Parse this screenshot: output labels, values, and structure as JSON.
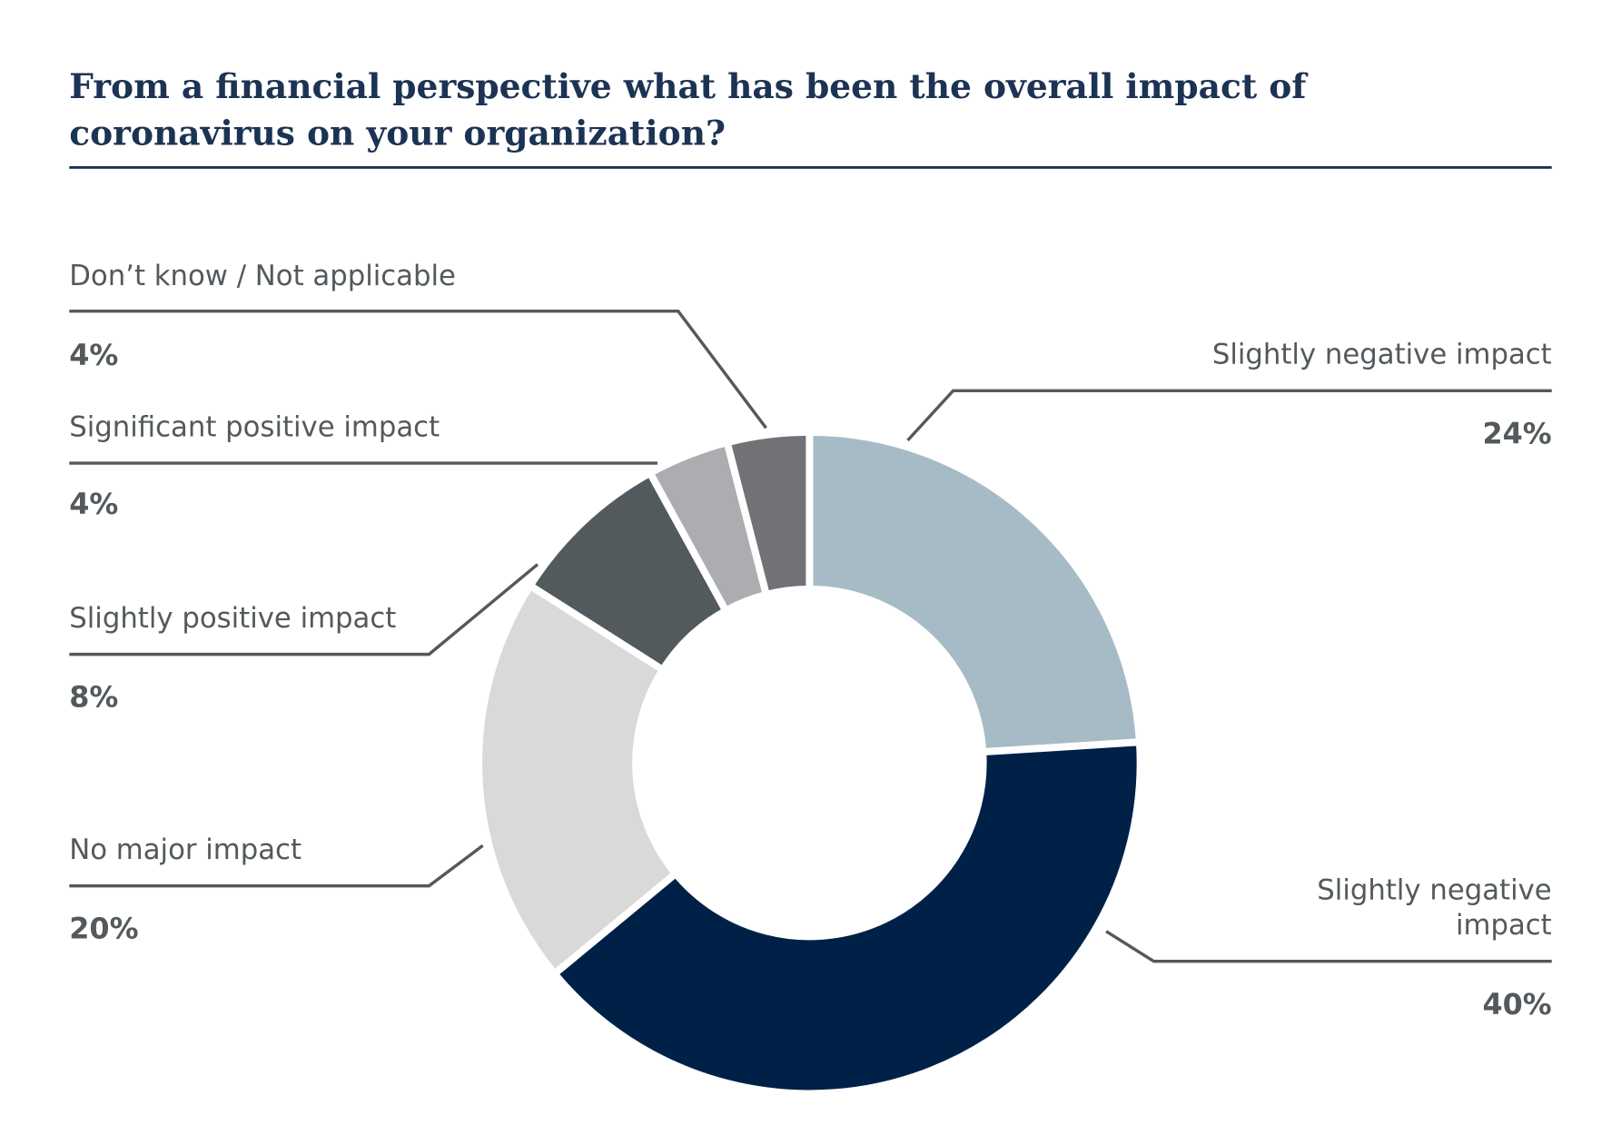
{
  "chart_data": {
    "type": "pie",
    "variant": "donut",
    "title_lines": [
      "From a financial perspective  what has been the overall impact of",
      "coronavirus on your organization?"
    ],
    "unit": "%",
    "slices": [
      {
        "label": "Slightly negative impact",
        "label_lines": [
          "Slightly negative impact"
        ],
        "value": 24,
        "value_label": "24%",
        "color": "#a7bbc6"
      },
      {
        "label": "Slightly negative impact",
        "label_lines": [
          "Slightly negative",
          "impact"
        ],
        "value": 40,
        "value_label": "40%",
        "color": "#002147"
      },
      {
        "label": "No major impact",
        "label_lines": [
          "No major impact"
        ],
        "value": 20,
        "value_label": "20%",
        "color": "#d9d9d9"
      },
      {
        "label": "Slightly positive impact",
        "label_lines": [
          "Slightly positive impact"
        ],
        "value": 8,
        "value_label": "8%",
        "color": "#525a5e"
      },
      {
        "label": "Significant positive impact",
        "label_lines": [
          "Significant positive impact"
        ],
        "value": 4,
        "value_label": "4%",
        "color": "#abadb0"
      },
      {
        "label": "Don’t know / Not applicable",
        "label_lines": [
          "Don’t know / Not applicable"
        ],
        "value": 4,
        "value_label": "4%",
        "color": "#717275"
      }
    ],
    "start_angle": "12 o'clock",
    "direction": "clockwise",
    "title_color": "#1c3353",
    "label_color": "#53595c"
  }
}
